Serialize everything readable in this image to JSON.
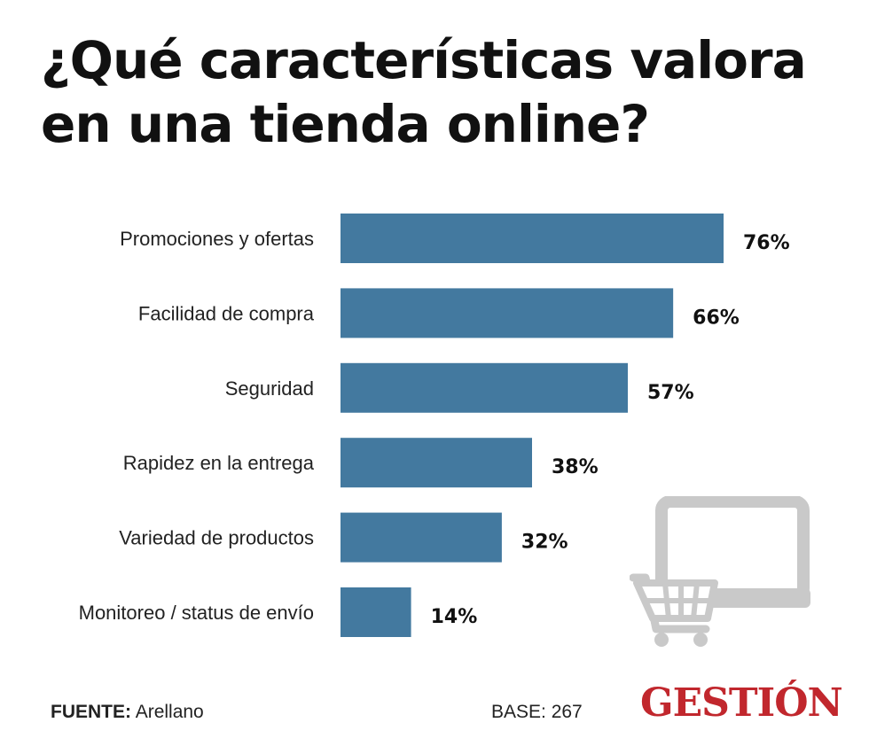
{
  "title": "¿Qué características valora en una tienda online?",
  "chart_data": {
    "type": "bar",
    "orientation": "horizontal",
    "categories": [
      "Promociones y ofertas",
      "Facilidad de compra",
      "Seguridad",
      "Rapidez en la entrega",
      "Variedad de productos",
      "Monitoreo / status de envío"
    ],
    "values": [
      76,
      66,
      57,
      38,
      32,
      14
    ],
    "value_labels": [
      "76%",
      "66%",
      "57%",
      "38%",
      "32%",
      "14%"
    ],
    "unit": "%",
    "title": "¿Qué características valora en una tienda online?",
    "xlabel": "",
    "ylabel": "",
    "xlim": [
      0,
      76
    ],
    "grid": false,
    "bar_color": "#43799f"
  },
  "footer": {
    "source_label": "FUENTE:",
    "source_value": "Arellano",
    "base": "BASE: 267"
  },
  "logo": "GESTIÓN",
  "colors": {
    "bar": "#43799f",
    "illustration": "#c9c9c9",
    "logo": "#c1272d"
  },
  "icons": [
    "laptop-icon",
    "shopping-cart-icon"
  ]
}
